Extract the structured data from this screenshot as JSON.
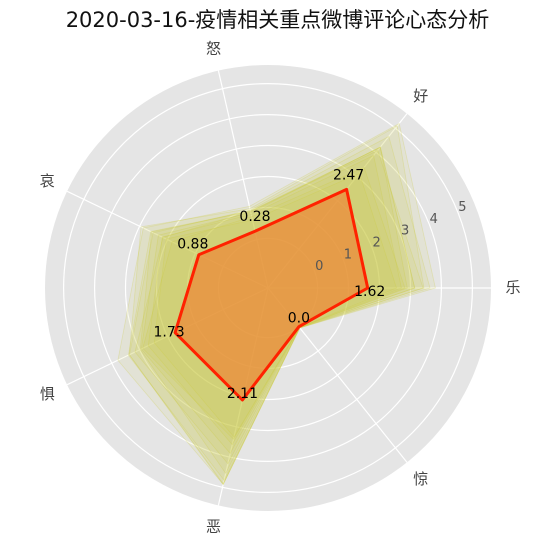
{
  "chart_data": {
    "type": "radar",
    "title": "2020-03-16-疫情相关重点微博评论心态分析",
    "axes": [
      "乐",
      "好",
      "怒",
      "哀",
      "惧",
      "恶",
      "惊"
    ],
    "axis_angles_deg": [
      0,
      51.43,
      102.86,
      154.29,
      205.71,
      257.14,
      308.57
    ],
    "radial_ticks": [
      "0",
      "1",
      "2",
      "3",
      "4",
      "5"
    ],
    "rlim": [
      -1.6,
      5.6
    ],
    "grid": true,
    "colors": {
      "background": "#e5e5e5",
      "grid": "#ffffff",
      "highlight_line": "#ff2200",
      "highlight_fill": "#f08030",
      "samples": "#cccc33"
    },
    "highlight_series": {
      "name": "2020-03-16",
      "values": [
        1.62,
        2.47,
        0.28,
        0.88,
        1.73,
        2.11,
        0.0
      ],
      "labels": [
        "1.62",
        "2.47",
        "0.28",
        "0.88",
        "1.73",
        "2.11",
        "0.0"
      ]
    },
    "sample_envelope": {
      "max": [
        3.7,
        5.0,
        1.2,
        2.9,
        3.6,
        5.0,
        0.05
      ],
      "mid": [
        2.6,
        3.4,
        0.6,
        1.9,
        2.6,
        3.5,
        0.02
      ]
    }
  }
}
